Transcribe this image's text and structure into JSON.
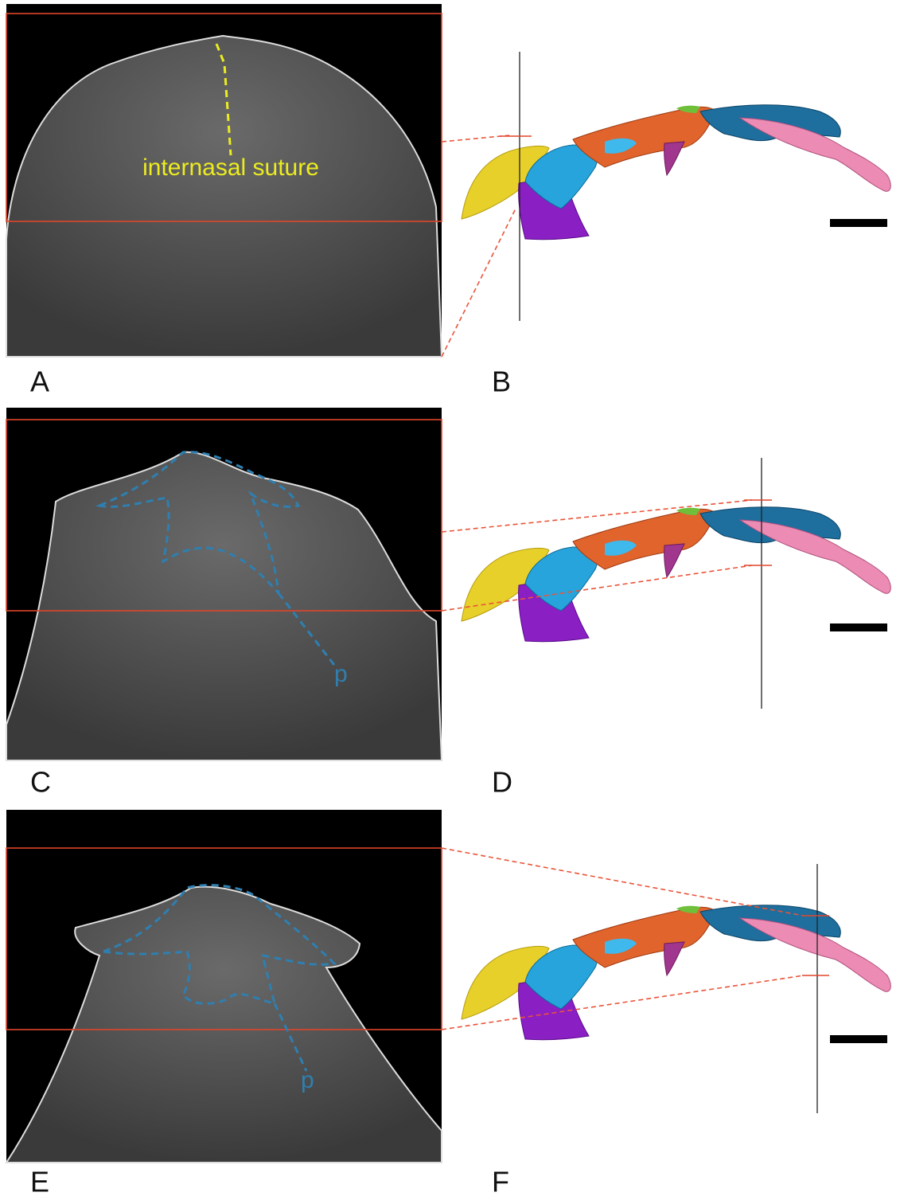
{
  "panels": [
    {
      "label": "A",
      "annotation": "internasal suture"
    },
    {
      "label": "B"
    },
    {
      "label": "C",
      "annotation": "p"
    },
    {
      "label": "D"
    },
    {
      "label": "E",
      "annotation": "p"
    },
    {
      "label": "F"
    }
  ]
}
